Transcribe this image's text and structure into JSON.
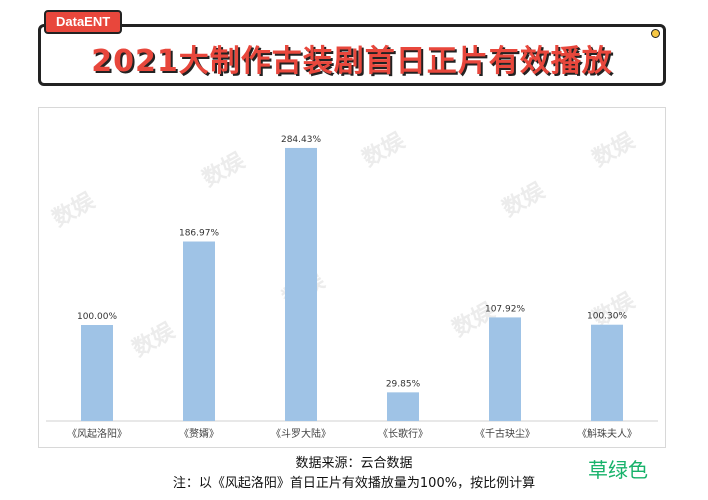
{
  "header": {
    "tag": "DataENT",
    "title": "2021大制作古装剧首日正片有效播放"
  },
  "colors": {
    "accent": "#e8473c",
    "bar": "#9fc3e6",
    "brand": "#17b26a"
  },
  "chart_data": {
    "type": "bar",
    "categories": [
      "《风起洛阳》",
      "《赘婿》",
      "《斗罗大陆》",
      "《长歌行》",
      "《千古玦尘》",
      "《斛珠夫人》"
    ],
    "values": [
      100.0,
      186.97,
      284.43,
      29.85,
      107.92,
      100.3
    ],
    "value_labels": [
      "100.00%",
      "186.97%",
      "284.43%",
      "29.85%",
      "107.92%",
      "100.30%"
    ],
    "ylim": [
      0,
      300
    ],
    "grid": false,
    "legend": "none"
  },
  "footer": {
    "source": "数据来源：云合数据",
    "note": "注：以《风起洛阳》首日正片有效播放量为100%，按比例计算",
    "brand": "草绿色"
  }
}
